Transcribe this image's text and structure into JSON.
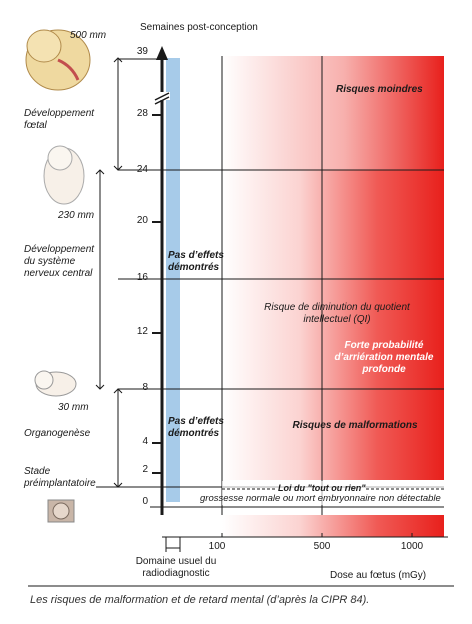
{
  "header": {
    "top_size": "500 mm",
    "axis_title": "Semaines post-conception"
  },
  "stages": {
    "fetal": "Développement fœtal",
    "mid_size": "230 mm",
    "nervous": "Développement du système nerveux central",
    "small_size": "30 mm",
    "organogenesis": "Organogenèse",
    "preimplant": "Stade préimplantatoire"
  },
  "weeks_ticks": [
    "39",
    "28",
    "24",
    "20",
    "16",
    "12",
    "8",
    "4",
    "2",
    "0"
  ],
  "zones": {
    "no_effect_upper": "Pas d’effets démontrés",
    "no_effect_lower": "Pas d’effets démontrés",
    "risk_lower": "Risques moindres",
    "iq_risk": "Risque de diminution du quotient intellectuel (QI)",
    "retardation": "Forte probabilité d’arriération mentale profonde",
    "malformations": "Risques de malformations",
    "all_or_nothing": "Loi du \"tout ou rien\"",
    "pregnancy_outcome": "grossesse normale ou mort embryonnaire non détectable"
  },
  "dose_axis": {
    "ticks": [
      "100",
      "500",
      "1000"
    ],
    "label": "Dose au fœtus (mGy)",
    "diag_label": "Domaine usuel du radiodiagnostic"
  },
  "caption": "Les risques de malformation et de retard mental (d’après la CIPR 84).",
  "colors": {
    "risk_red": "#e8201c",
    "diagnostic_blue": "#a7cbe9"
  }
}
